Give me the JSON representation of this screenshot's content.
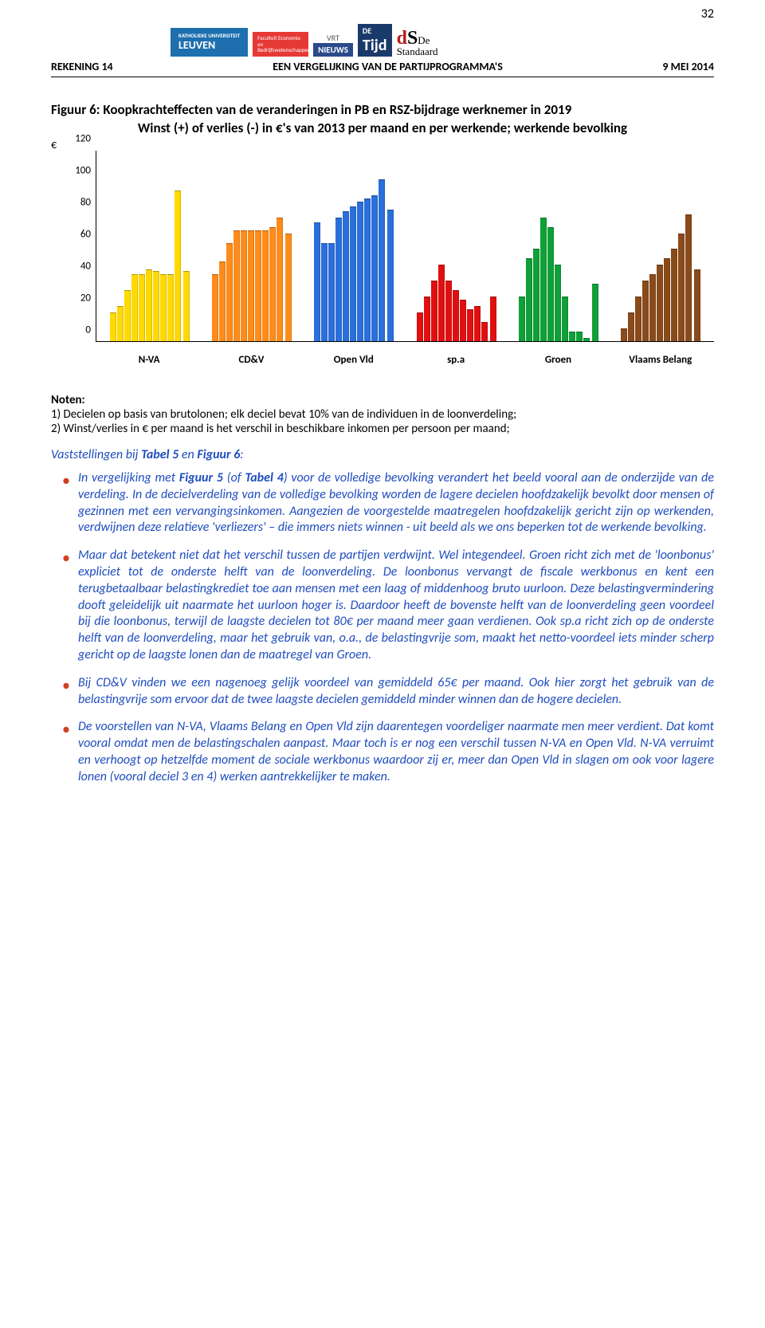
{
  "page_number": "32",
  "header_left": "REKENING 14",
  "header_center": "EEN VERGELIJKING VAN DE PARTIJPROGRAMMA'S",
  "header_right": "9 MEI 2014",
  "logo_leuven_top": "KATHOLIEKE UNIVERSITEIT",
  "logo_leuven": "LEUVEN",
  "logo_econ": "Faculteit Economie en Bedrijfswetenschappen",
  "logo_vrt": "VRT",
  "logo_nieuws": "NIEUWS",
  "logo_tijd_de": "DE",
  "logo_tijd": "Tijd",
  "logo_ds_d": "d",
  "logo_ds_s": "S",
  "logo_ds_de": "De",
  "logo_ds_std": "Standaard",
  "fig_title": "Figuur 6: Koopkrachteffecten van de veranderingen in PB en RSZ-bijdrage werknemer in 2019",
  "fig_sub": "Winst (+) of verlies (-) in €'s van 2013 per maand en per werkende; werkende bevolking",
  "chart": {
    "currency": "€",
    "ylim": [
      0,
      120
    ],
    "ytick_step": 20,
    "yticks": [
      "0",
      "20",
      "40",
      "60",
      "80",
      "100",
      "120"
    ],
    "grid_on": false,
    "bg": "#ffffff",
    "parties": [
      {
        "label": "N-VA",
        "color": "#ffd900",
        "deciles": [
          18,
          22,
          32,
          42,
          42,
          45,
          44,
          42,
          42,
          95
        ],
        "totaal": 44
      },
      {
        "label": "CD&V",
        "color": "#ff8c1a",
        "deciles": [
          42,
          50,
          62,
          70,
          70,
          70,
          70,
          70,
          72,
          78
        ],
        "totaal": 68
      },
      {
        "label": "Open Vld",
        "color": "#2a6fdb",
        "deciles": [
          75,
          62,
          62,
          78,
          82,
          85,
          88,
          90,
          92,
          102
        ],
        "totaal": 83
      },
      {
        "label": "sp.a",
        "color": "#e01010",
        "deciles": [
          18,
          28,
          38,
          48,
          38,
          32,
          26,
          20,
          22,
          12
        ],
        "totaal": 28
      },
      {
        "label": "Groen",
        "color": "#0fa038",
        "deciles": [
          28,
          52,
          58,
          78,
          72,
          48,
          28,
          6,
          6,
          2
        ],
        "totaal": 36
      },
      {
        "label": "Vlaams Belang",
        "color": "#8a4a1a",
        "deciles": [
          8,
          18,
          28,
          38,
          42,
          48,
          52,
          58,
          68,
          80
        ],
        "totaal": 45
      }
    ],
    "fontsize_axis": 13
  },
  "noten_head": "Noten:",
  "noten_1": "1) Decielen op basis van brutolonen; elk deciel bevat 10% van de individuen in de loonverdeling;",
  "noten_2": "2) Winst/verlies in € per maand is het verschil in beschikbare inkomen per persoon per maand;",
  "vast_pre": "Vaststellingen bij ",
  "vast_t5": "Tabel 5",
  "vast_mid": " en ",
  "vast_f6": "Figuur 6",
  "vast_post": ":",
  "b1_pre": "In vergelijking met ",
  "b1_f5": "Figuur 5",
  "b1_mid1": " (of ",
  "b1_t4": "Tabel 4",
  "b1_rest": ") voor de volledige bevolking verandert het beeld vooral aan de onderzijde van de verdeling. In de decielverdeling van de volledige bevolking worden de lagere decielen hoofdzakelijk bevolkt door mensen of gezinnen met een vervangingsinkomen. Aangezien de voorgestelde maatregelen hoofdzakelijk gericht zijn op werkenden, verdwijnen deze relatieve 'verliezers' – die immers niets winnen - uit beeld als we ons beperken tot de werkende bevolking.",
  "b2": "Maar dat betekent niet dat het verschil tussen de partijen verdwijnt. Wel integendeel. Groen richt zich met de 'loonbonus' expliciet tot de onderste helft van de loonverdeling. De loonbonus vervangt de fiscale werkbonus en kent een terugbetaalbaar belastingkrediet toe aan mensen met een laag of middenhoog bruto uurloon. Deze belastingvermindering dooft geleidelijk uit naarmate het uurloon hoger is. Daardoor heeft de bovenste helft van de loonverdeling geen voordeel bij die loonbonus, terwijl de laagste decielen tot 80€ per maand meer gaan verdienen. Ook sp.a richt zich op de onderste helft van de loonverdeling, maar het gebruik van, o.a., de belastingvrije som, maakt het netto-voordeel iets minder scherp gericht op de laagste lonen dan de maatregel van Groen.",
  "b3": "Bij CD&V vinden we een nagenoeg gelijk voordeel van gemiddeld 65€ per maand. Ook hier zorgt het gebruik van de belastingvrije som ervoor dat de twee laagste decielen gemiddeld minder winnen dan de hogere decielen.",
  "b4": "De voorstellen van N-VA, Vlaams Belang en Open Vld zijn daarentegen voordeliger naarmate men meer verdient. Dat komt vooral omdat men de belastingschalen aanpast. Maar toch is er nog een verschil tussen N-VA en Open Vld. N-VA verruimt en verhoogt op hetzelfde moment de sociale werkbonus waardoor zij er, meer dan Open Vld in slagen om ook voor lagere lonen (vooral deciel 3 en 4) werken aantrekkelijker te maken."
}
